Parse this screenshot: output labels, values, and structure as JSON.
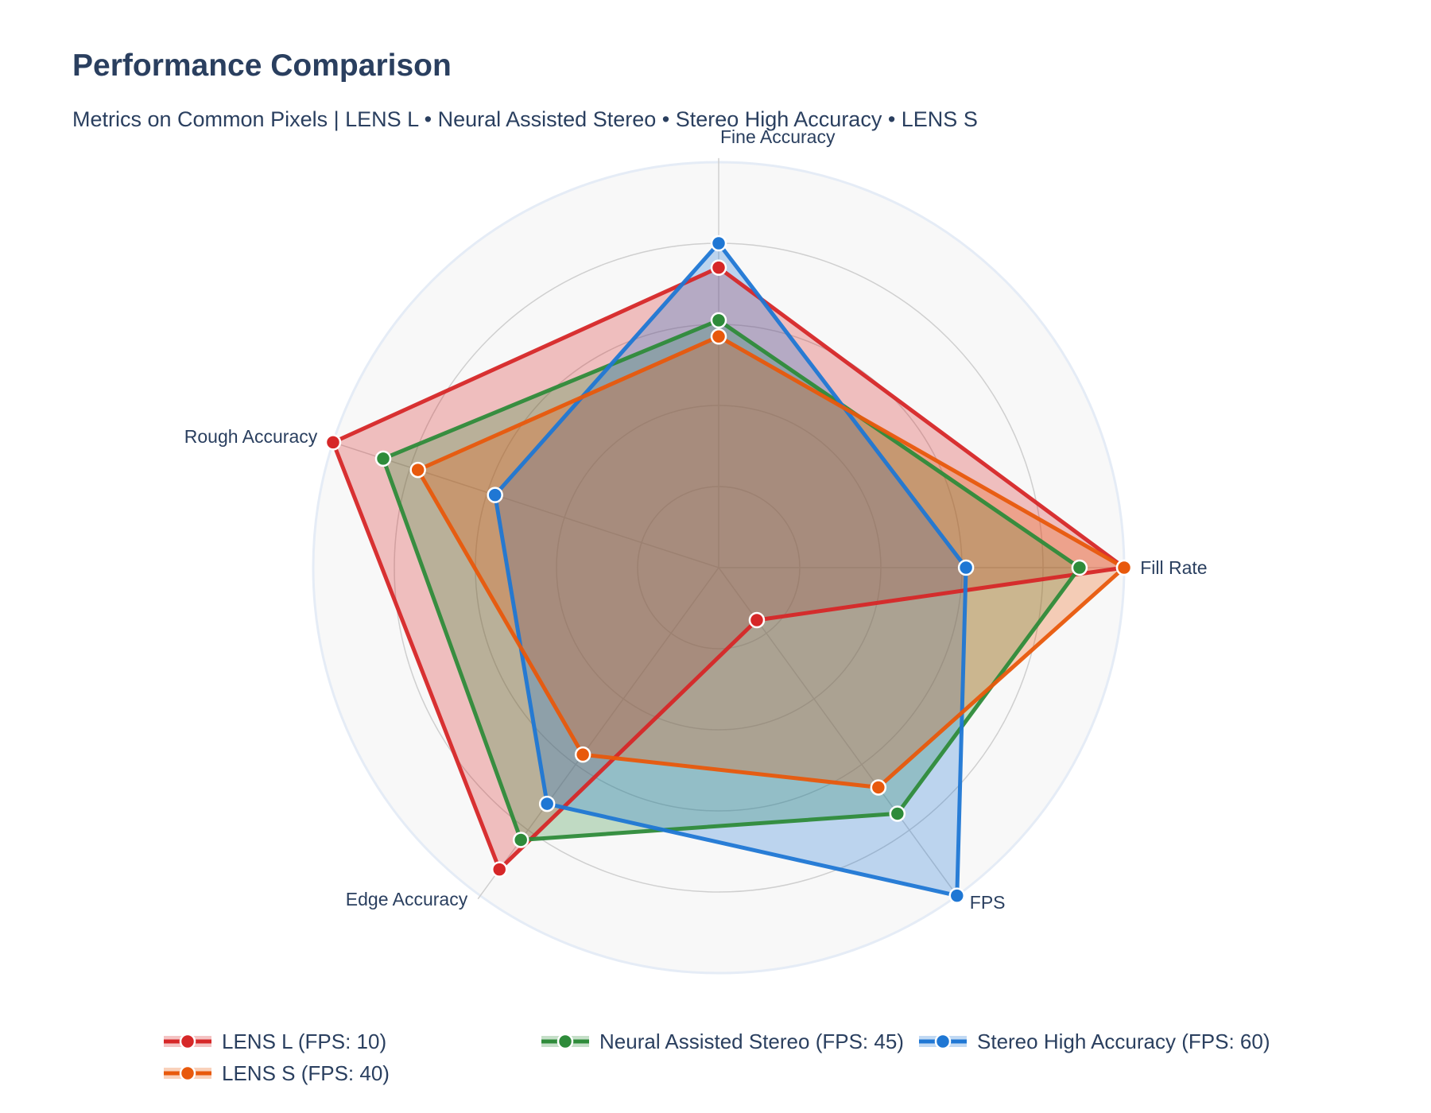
{
  "chart_data": {
    "type": "radar",
    "title": "Performance Comparison",
    "subtitle": "Metrics on Common Pixels | LENS L  •  Neural Assisted Stereo  •  Stereo High Accuracy  •  LENS S",
    "axes": [
      "Fill Rate",
      "Fine Accuracy",
      "Rough Accuracy",
      "Edge Accuracy",
      "FPS"
    ],
    "rlim": [
      0,
      100
    ],
    "grid": true,
    "legend_position": "bottom",
    "series": [
      {
        "name": "LENS L",
        "legend_label": "LENS L (FPS: 10)",
        "color": "#d62728",
        "values": [
          100,
          74,
          100,
          92,
          16
        ]
      },
      {
        "name": "Neural Assisted Stereo",
        "legend_label": "Neural Assisted Stereo (FPS: 45)",
        "color": "#2e8b3a",
        "values": [
          89,
          61,
          87,
          83,
          75
        ]
      },
      {
        "name": "Stereo High Accuracy",
        "legend_label": "Stereo High Accuracy (FPS: 60)",
        "color": "#1f77d4",
        "values": [
          61,
          80,
          58,
          72,
          100
        ]
      },
      {
        "name": "LENS S",
        "legend_label": "LENS S (FPS: 40)",
        "color": "#e8590c",
        "values": [
          100,
          57,
          78,
          57,
          67
        ]
      }
    ]
  }
}
